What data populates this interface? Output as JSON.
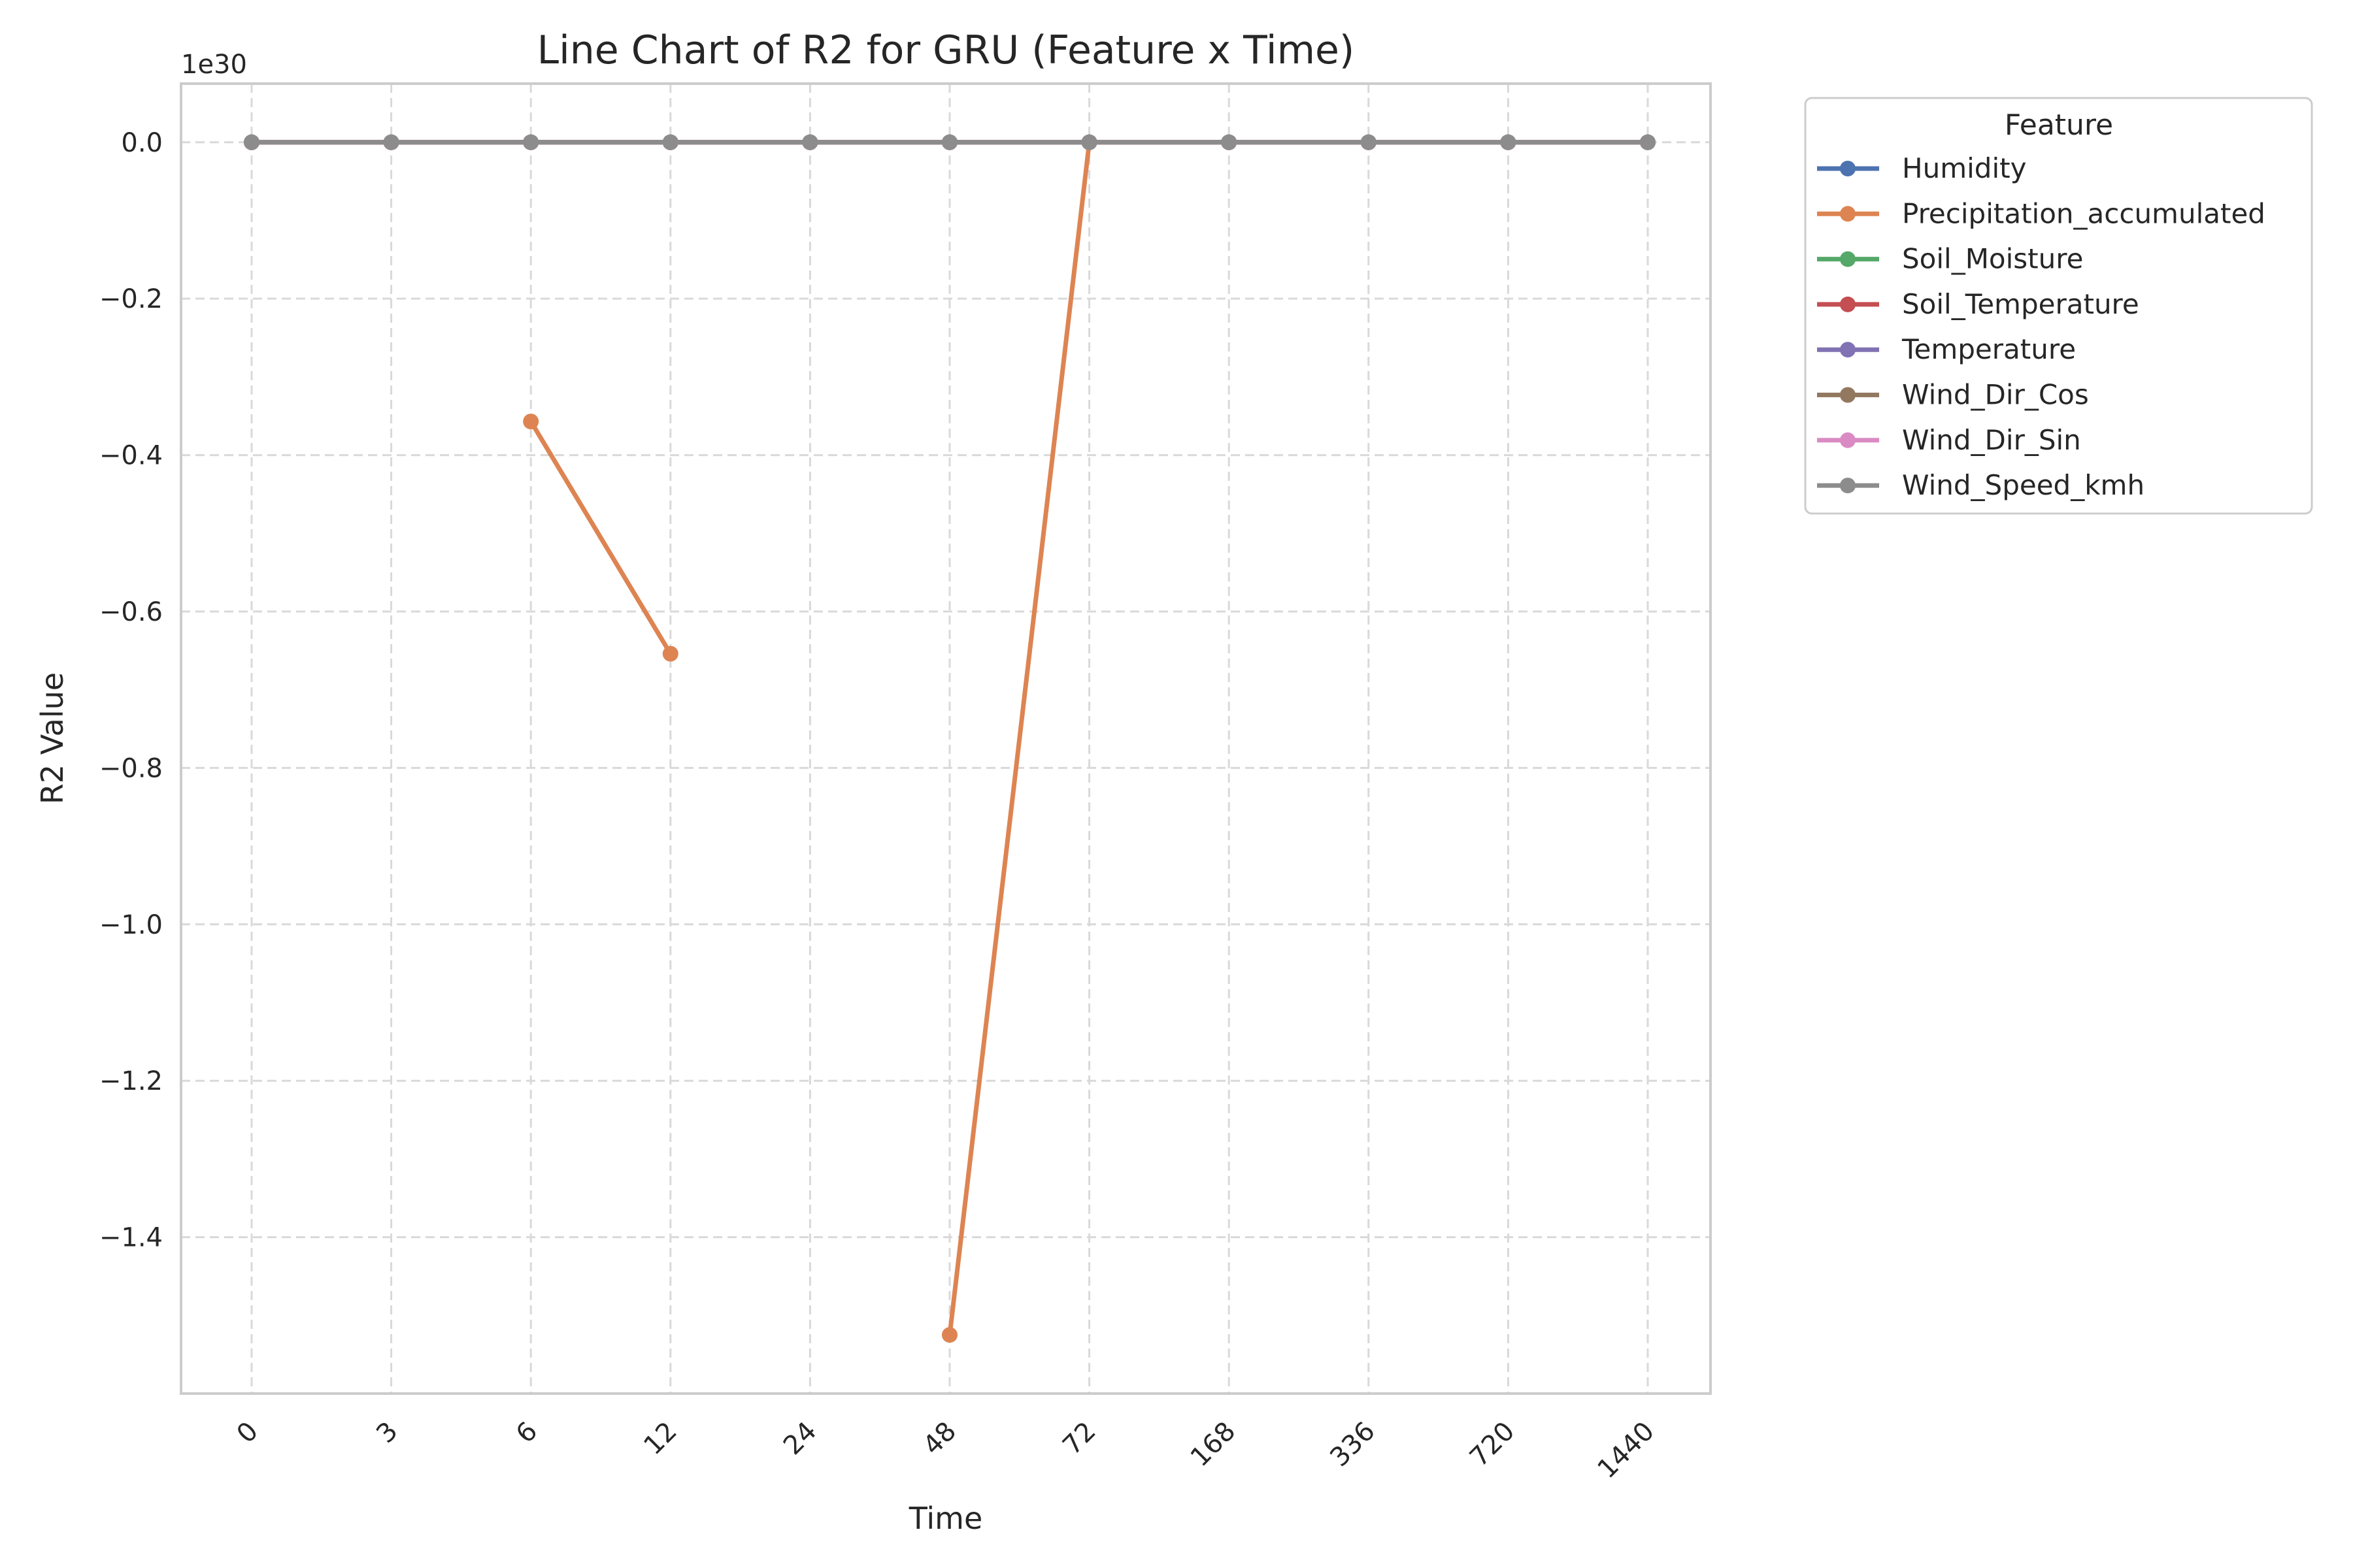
{
  "chart_data": {
    "type": "line",
    "title": "Line Chart of R2 for GRU (Feature x Time)",
    "xlabel": "Time",
    "ylabel": "R2 Value",
    "y_exponent_label": "1e30",
    "y_unit_scale": 1e+30,
    "categories": [
      "0",
      "3",
      "6",
      "12",
      "24",
      "48",
      "72",
      "168",
      "336",
      "720",
      "1440"
    ],
    "ylim": [
      -1.6e+30,
      7.5e+28
    ],
    "yticks": [
      0,
      -2e+29,
      -4e+29,
      -6e+29,
      -8e+29,
      -1e+30,
      -1.2e+30,
      -1.4e+30
    ],
    "ytick_labels": [
      "0.0",
      "−0.2",
      "−0.4",
      "−0.6",
      "−0.8",
      "−1.0",
      "−1.2",
      "−1.4"
    ],
    "grid": true,
    "legend_title": "Feature",
    "legend_position": "outside-top-right",
    "series": [
      {
        "name": "Humidity",
        "color": "#4c72b0",
        "values": [
          0,
          0,
          0,
          0,
          0,
          0,
          0,
          0,
          0,
          0,
          0
        ]
      },
      {
        "name": "Precipitation_accumulated",
        "color": "#dd8452",
        "values": [
          0,
          0,
          -3.57e+29,
          -6.54e+29,
          0,
          -1.525e+30,
          0,
          0,
          0,
          0,
          0
        ],
        "segments": [
          [
            2,
            3
          ],
          [
            5,
            6
          ]
        ]
      },
      {
        "name": "Soil_Moisture",
        "color": "#55a868",
        "values": [
          0,
          0,
          0,
          0,
          0,
          0,
          0,
          0,
          0,
          0,
          0
        ]
      },
      {
        "name": "Soil_Temperature",
        "color": "#c44e52",
        "values": [
          0,
          0,
          0,
          0,
          0,
          0,
          0,
          0,
          0,
          0,
          0
        ]
      },
      {
        "name": "Temperature",
        "color": "#8172b3",
        "values": [
          0,
          0,
          0,
          0,
          0,
          0,
          0,
          0,
          0,
          0,
          0
        ]
      },
      {
        "name": "Wind_Dir_Cos",
        "color": "#937860",
        "values": [
          0,
          0,
          0,
          0,
          0,
          0,
          0,
          0,
          0,
          0,
          0
        ]
      },
      {
        "name": "Wind_Dir_Sin",
        "color": "#da8bc3",
        "values": [
          0,
          0,
          0,
          0,
          0,
          0,
          0,
          0,
          0,
          0,
          0
        ]
      },
      {
        "name": "Wind_Speed_kmh",
        "color": "#8c8c8c",
        "values": [
          0,
          0,
          0,
          0,
          0,
          0,
          0,
          0,
          0,
          0,
          0
        ]
      }
    ]
  }
}
